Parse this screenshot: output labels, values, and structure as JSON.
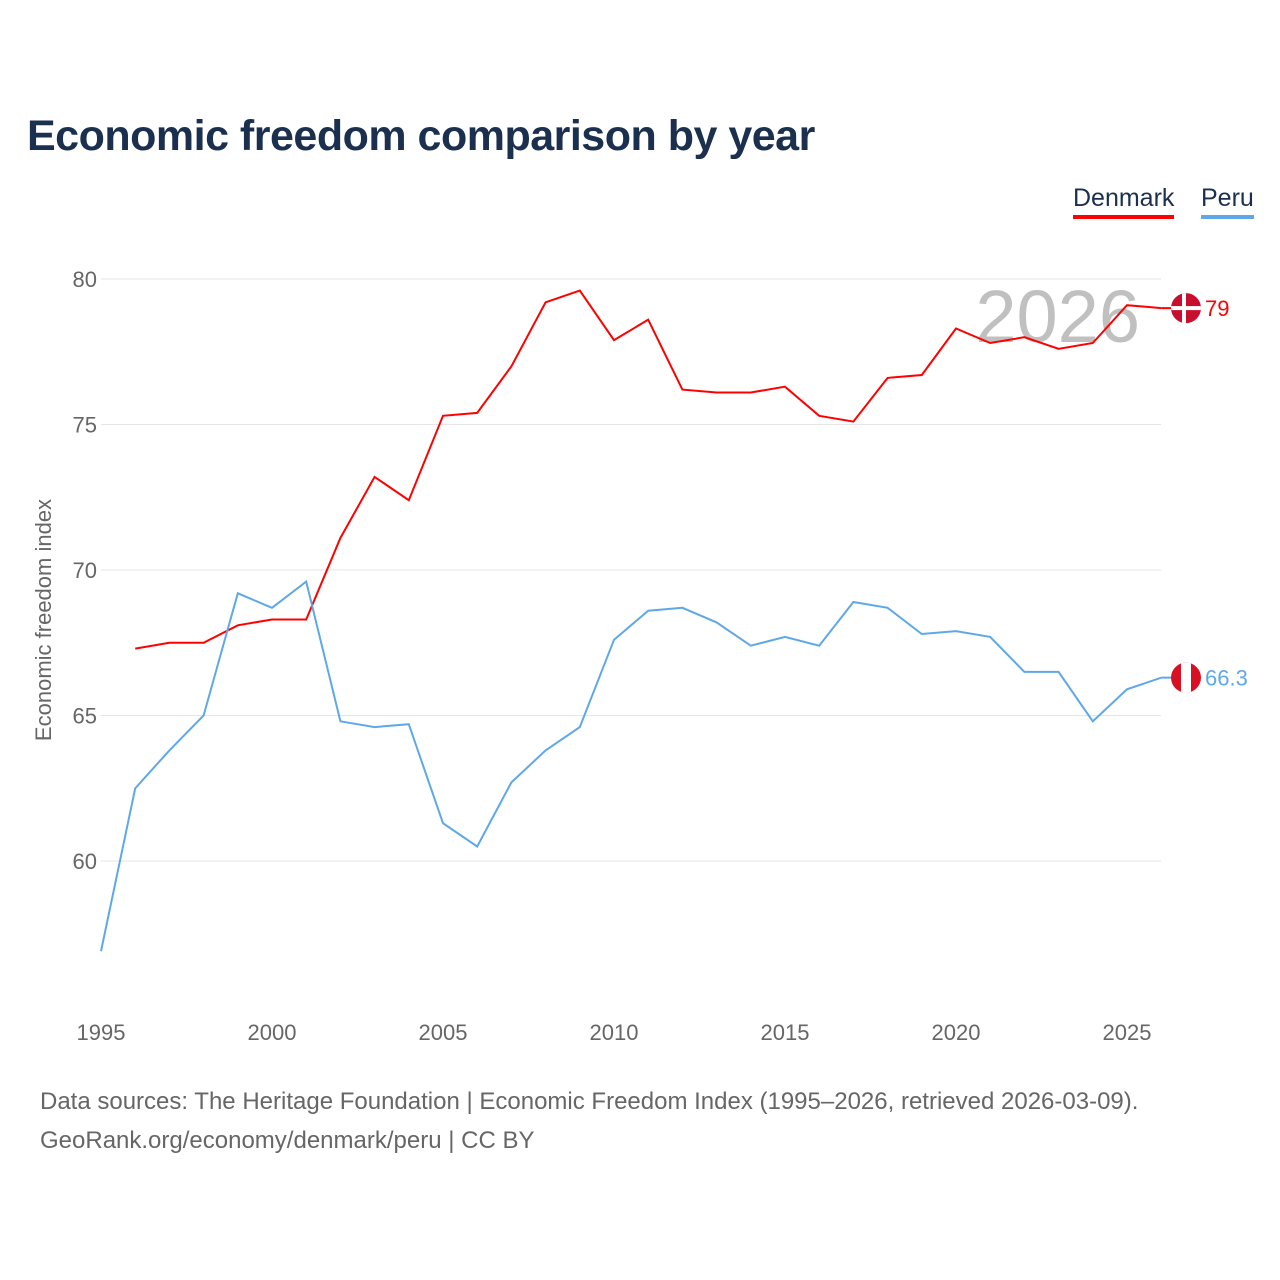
{
  "chart_data": {
    "type": "line",
    "title": "Economic freedom comparison by year",
    "ylabel": "Economic freedom index",
    "xlabel": "",
    "ylim": [
      55.3,
      82
    ],
    "xlim": [
      1995,
      2026
    ],
    "yticks": [
      60,
      65,
      70,
      75,
      80
    ],
    "xticks": [
      1995,
      2000,
      2005,
      2010,
      2015,
      2020,
      2025
    ],
    "grid": true,
    "legend_position": "top-right",
    "year_watermark": "2026",
    "series": [
      {
        "name": "Denmark",
        "color": "#ff0000",
        "end_label": "79",
        "x": [
          1996,
          1997,
          1998,
          1999,
          2000,
          2001,
          2002,
          2003,
          2004,
          2005,
          2006,
          2007,
          2008,
          2009,
          2010,
          2011,
          2012,
          2013,
          2014,
          2015,
          2016,
          2017,
          2018,
          2019,
          2020,
          2021,
          2022,
          2023,
          2024,
          2025,
          2026
        ],
        "values": [
          67.3,
          67.5,
          67.5,
          68.1,
          68.3,
          68.3,
          71.1,
          73.2,
          72.4,
          75.3,
          75.4,
          77.0,
          79.2,
          79.6,
          77.9,
          78.6,
          76.2,
          76.1,
          76.1,
          76.3,
          75.3,
          75.1,
          76.6,
          76.7,
          78.3,
          77.8,
          78.0,
          77.6,
          77.8,
          79.1,
          79.0
        ]
      },
      {
        "name": "Peru",
        "color": "#5fa8e8",
        "end_label": "66.3",
        "x": [
          1995,
          1996,
          1997,
          1998,
          1999,
          2000,
          2001,
          2002,
          2003,
          2004,
          2005,
          2006,
          2007,
          2008,
          2009,
          2010,
          2011,
          2012,
          2013,
          2014,
          2015,
          2016,
          2017,
          2018,
          2019,
          2020,
          2021,
          2022,
          2023,
          2024,
          2025,
          2026
        ],
        "values": [
          56.9,
          62.5,
          63.8,
          65.0,
          69.2,
          68.7,
          69.6,
          64.8,
          64.6,
          64.7,
          61.3,
          60.5,
          62.7,
          63.8,
          64.6,
          67.6,
          68.6,
          68.7,
          68.2,
          67.4,
          67.7,
          67.4,
          68.9,
          68.7,
          67.8,
          67.9,
          67.7,
          66.5,
          66.5,
          64.8,
          65.9,
          66.3
        ]
      }
    ]
  },
  "footer": {
    "line1": "Data sources: The Heritage Foundation | Economic Freedom Index (1995–2026, retrieved 2026-03-09).",
    "line2": "GeoRank.org/economy/denmark/peru | CC BY"
  }
}
